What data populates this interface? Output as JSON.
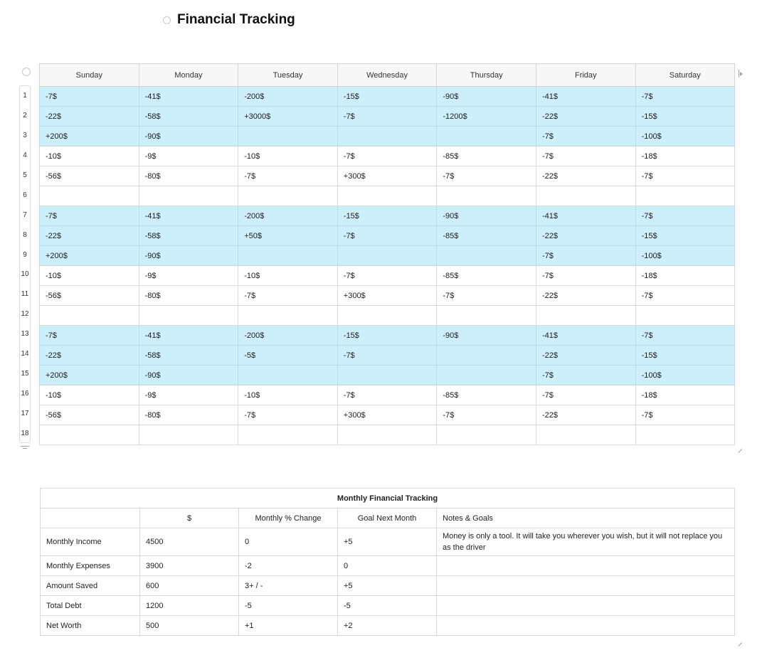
{
  "page": {
    "title": "Financial Tracking"
  },
  "weekly": {
    "days": [
      "Sunday",
      "Monday",
      "Tuesday",
      "Wednesday",
      "Thursday",
      "Friday",
      "Saturday"
    ],
    "highlight_color": "#cdeefb",
    "rows": [
      {
        "num": "1",
        "hl": true,
        "cells": [
          "-7$",
          "-41$",
          "-200$",
          "-15$",
          "-90$",
          "-41$",
          "-7$"
        ]
      },
      {
        "num": "2",
        "hl": true,
        "cells": [
          "-22$",
          "-58$",
          "+3000$",
          "-7$",
          "-1200$",
          "-22$",
          "-15$"
        ]
      },
      {
        "num": "3",
        "hl": true,
        "cells": [
          "+200$",
          "-90$",
          "",
          "",
          "",
          "-7$",
          "-100$"
        ]
      },
      {
        "num": "4",
        "hl": false,
        "cells": [
          "-10$",
          "-9$",
          "-10$",
          "-7$",
          "-85$",
          "-7$",
          "-18$"
        ]
      },
      {
        "num": "5",
        "hl": false,
        "cells": [
          "-56$",
          "-80$",
          "-7$",
          "+300$",
          "-7$",
          "-22$",
          "-7$"
        ]
      },
      {
        "num": "6",
        "hl": false,
        "cells": [
          "",
          "",
          "",
          "",
          "",
          "",
          ""
        ]
      },
      {
        "num": "7",
        "hl": true,
        "cells": [
          "-7$",
          "-41$",
          "-200$",
          "-15$",
          "-90$",
          "-41$",
          "-7$"
        ]
      },
      {
        "num": "8",
        "hl": true,
        "cells": [
          "-22$",
          "-58$",
          "+50$",
          "-7$",
          "-85$",
          "-22$",
          "-15$"
        ]
      },
      {
        "num": "9",
        "hl": true,
        "cells": [
          "+200$",
          "-90$",
          "",
          "",
          "",
          "-7$",
          "-100$"
        ]
      },
      {
        "num": "10",
        "hl": false,
        "cells": [
          "-10$",
          "-9$",
          "-10$",
          "-7$",
          "-85$",
          "-7$",
          "-18$"
        ]
      },
      {
        "num": "11",
        "hl": false,
        "cells": [
          "-56$",
          "-80$",
          "-7$",
          "+300$",
          "-7$",
          "-22$",
          "-7$"
        ]
      },
      {
        "num": "12",
        "hl": false,
        "cells": [
          "",
          "",
          "",
          "",
          "",
          "",
          ""
        ]
      },
      {
        "num": "13",
        "hl": true,
        "cells": [
          "-7$",
          "-41$",
          "-200$",
          "-15$",
          "-90$",
          "-41$",
          "-7$"
        ]
      },
      {
        "num": "14",
        "hl": true,
        "cells": [
          "-22$",
          "-58$",
          "-5$",
          "-7$",
          "",
          "-22$",
          "-15$"
        ]
      },
      {
        "num": "15",
        "hl": true,
        "cells": [
          "+200$",
          "-90$",
          "",
          "",
          "",
          "-7$",
          "-100$"
        ]
      },
      {
        "num": "16",
        "hl": false,
        "cells": [
          "-10$",
          "-9$",
          "-10$",
          "-7$",
          "-85$",
          "-7$",
          "-18$"
        ]
      },
      {
        "num": "17",
        "hl": false,
        "cells": [
          "-56$",
          "-80$",
          "-7$",
          "+300$",
          "-7$",
          "-22$",
          "-7$"
        ]
      },
      {
        "num": "18",
        "hl": false,
        "cells": [
          "",
          "",
          "",
          "",
          "",
          "",
          ""
        ]
      }
    ]
  },
  "monthly": {
    "caption": "Monthly Financial Tracking",
    "headers": [
      "",
      "$",
      "Monthly % Change",
      "Goal Next Month",
      "Notes & Goals"
    ],
    "rows": [
      {
        "label": "Monthly Income",
        "amount": "4500",
        "change": "0",
        "goal": "+5",
        "notes": "Money is only a tool. It will take you wherever you wish, but it will not replace you as the driver"
      },
      {
        "label": "Monthly Expenses",
        "amount": "3900",
        "change": "-2",
        "goal": "0",
        "notes": ""
      },
      {
        "label": "Amount Saved",
        "amount": "600",
        "change": "3+ / -",
        "goal": "+5",
        "notes": ""
      },
      {
        "label": "Total Debt",
        "amount": "1200",
        "change": "-5",
        "goal": "-5",
        "notes": ""
      },
      {
        "label": "Net Worth",
        "amount": "500",
        "change": "+1",
        "goal": "+2",
        "notes": ""
      }
    ]
  }
}
